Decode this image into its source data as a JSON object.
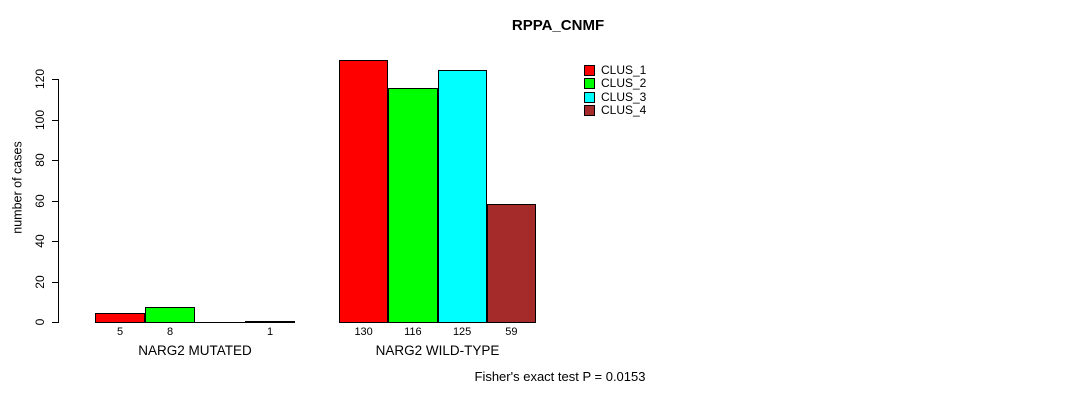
{
  "chart_data": {
    "type": "bar",
    "title": "RPPA_CNMF",
    "ylabel": "number of cases",
    "xlabel": "",
    "ylim": [
      0,
      130
    ],
    "yticks": [
      0,
      20,
      40,
      60,
      80,
      100,
      120
    ],
    "grid": false,
    "legend_position": "right",
    "categories": [
      "NARG2 MUTATED",
      "NARG2 WILD-TYPE"
    ],
    "series": [
      {
        "name": "CLUS_1",
        "color": "#ff0000",
        "values": [
          5,
          130
        ]
      },
      {
        "name": "CLUS_2",
        "color": "#00ff00",
        "values": [
          8,
          116
        ]
      },
      {
        "name": "CLUS_3",
        "color": "#00ffff",
        "values": [
          0,
          125
        ]
      },
      {
        "name": "CLUS_4",
        "color": "#a52a2a",
        "values": [
          1,
          59
        ]
      }
    ],
    "bar_value_labels": [
      [
        "5",
        "8",
        "",
        "1"
      ],
      [
        "130",
        "116",
        "125",
        "59"
      ]
    ],
    "annotation": "Fisher's exact test P = 0.0153"
  }
}
